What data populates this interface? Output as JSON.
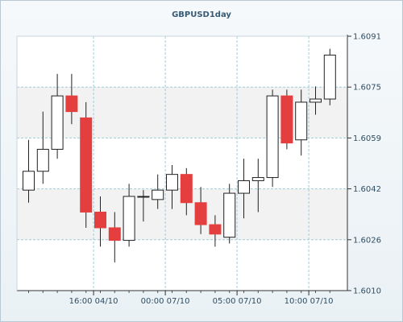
{
  "chart_data": {
    "type": "candlestick",
    "title": "GBPUSD1day",
    "y_ticks": [
      "1.6091",
      "1.6075",
      "1.6059",
      "1.6042",
      "1.6026",
      "1.6010"
    ],
    "ylim": [
      1.601,
      1.6091
    ],
    "x_ticks": [
      {
        "label": "16:00 04/10",
        "index": 4.5
      },
      {
        "label": "00:00 07/10",
        "index": 9.5
      },
      {
        "label": "05:00 07/10",
        "index": 14.5
      },
      {
        "label": "10:00 07/10",
        "index": 19.5
      }
    ],
    "grid": true,
    "colors": {
      "up": "#ffffff",
      "down": "#e53e3e",
      "wick": "#222222",
      "grid": "#9ecdd8"
    },
    "candles": [
      {
        "open": 1.6042,
        "close": 1.6048,
        "high": 1.6058,
        "low": 1.6038
      },
      {
        "open": 1.6048,
        "close": 1.6055,
        "high": 1.6067,
        "low": 1.6044
      },
      {
        "open": 1.6055,
        "close": 1.6072,
        "high": 1.6079,
        "low": 1.6052
      },
      {
        "open": 1.6072,
        "close": 1.6067,
        "high": 1.6079,
        "low": 1.6063
      },
      {
        "open": 1.6065,
        "close": 1.6035,
        "high": 1.607,
        "low": 1.603
      },
      {
        "open": 1.6035,
        "close": 1.603,
        "high": 1.604,
        "low": 1.6024
      },
      {
        "open": 1.603,
        "close": 1.6026,
        "high": 1.6035,
        "low": 1.6019
      },
      {
        "open": 1.6026,
        "close": 1.604,
        "high": 1.6044,
        "low": 1.6024
      },
      {
        "open": 1.604,
        "close": 1.604,
        "high": 1.6042,
        "low": 1.6032
      },
      {
        "open": 1.6039,
        "close": 1.6042,
        "high": 1.6047,
        "low": 1.6036
      },
      {
        "open": 1.6042,
        "close": 1.6047,
        "high": 1.605,
        "low": 1.6036
      },
      {
        "open": 1.6047,
        "close": 1.6038,
        "high": 1.6049,
        "low": 1.6034
      },
      {
        "open": 1.6038,
        "close": 1.6031,
        "high": 1.6043,
        "low": 1.6028
      },
      {
        "open": 1.6031,
        "close": 1.6028,
        "high": 1.6034,
        "low": 1.6024
      },
      {
        "open": 1.6027,
        "close": 1.6041,
        "high": 1.6044,
        "low": 1.6025
      },
      {
        "open": 1.6041,
        "close": 1.6045,
        "high": 1.6052,
        "low": 1.6033
      },
      {
        "open": 1.6045,
        "close": 1.6046,
        "high": 1.6052,
        "low": 1.6035
      },
      {
        "open": 1.6046,
        "close": 1.6072,
        "high": 1.6074,
        "low": 1.6043
      },
      {
        "open": 1.6072,
        "close": 1.6057,
        "high": 1.6074,
        "low": 1.6055
      },
      {
        "open": 1.6058,
        "close": 1.607,
        "high": 1.6074,
        "low": 1.6053
      },
      {
        "open": 1.607,
        "close": 1.6071,
        "high": 1.6075,
        "low": 1.6066
      },
      {
        "open": 1.6071,
        "close": 1.6085,
        "high": 1.6087,
        "low": 1.6069
      }
    ]
  }
}
